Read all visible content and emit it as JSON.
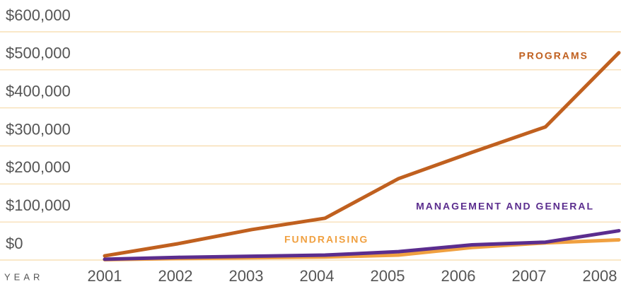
{
  "chart_data": {
    "type": "line",
    "x_label": "YEAR",
    "categories": [
      "2001",
      "2002",
      "2003",
      "2004",
      "2005",
      "2006",
      "2007",
      "2008"
    ],
    "series": [
      {
        "name": "PROGRAMS",
        "color": "#c0601f",
        "values": [
          11000,
          43000,
          80000,
          110000,
          214000,
          283000,
          350000,
          545000
        ]
      },
      {
        "name": "MANAGEMENT AND GENERAL",
        "color": "#5b2d8e",
        "values": [
          2000,
          7000,
          10000,
          13000,
          22000,
          40000,
          47000,
          77000
        ]
      },
      {
        "name": "FUNDRAISING",
        "color": "#f0a040",
        "values": [
          1000,
          4000,
          6000,
          8000,
          13000,
          33000,
          45000,
          53000
        ]
      }
    ],
    "ylim": [
      0,
      600000
    ],
    "yticks": [
      {
        "value": 0,
        "label": "$0"
      },
      {
        "value": 100000,
        "label": "$100,000"
      },
      {
        "value": 200000,
        "label": "$200,000"
      },
      {
        "value": 300000,
        "label": "$300,000"
      },
      {
        "value": 400000,
        "label": "$400,000"
      },
      {
        "value": 500000,
        "label": "$500,000"
      },
      {
        "value": 600000,
        "label": "$600,000"
      }
    ],
    "grid": true
  }
}
